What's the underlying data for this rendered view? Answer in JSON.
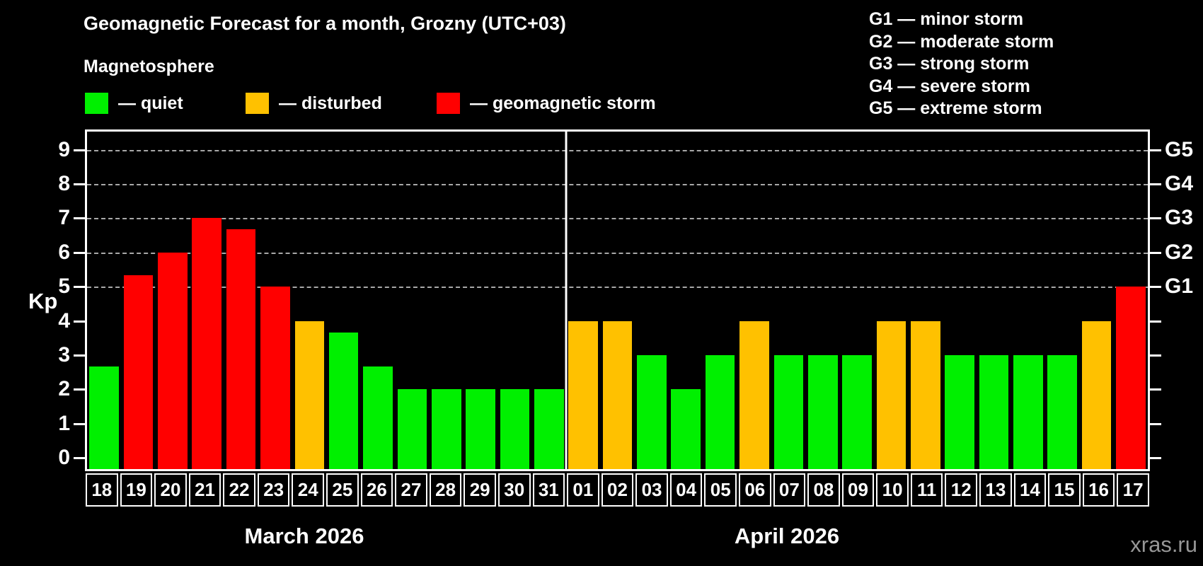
{
  "title": "Geomagnetic Forecast for a month, Grozny (UTC+03)",
  "subtitle": "Magnetosphere",
  "legend": {
    "items": [
      {
        "key": "quiet",
        "label": "— quiet"
      },
      {
        "key": "disturbed",
        "label": "— disturbed"
      },
      {
        "key": "storm",
        "label": "— geomagnetic storm"
      }
    ]
  },
  "g_legend": {
    "items": [
      "G1 — minor storm",
      "G2 — moderate storm",
      "G3 — strong storm",
      "G4 — severe storm",
      "G5 — extreme storm"
    ]
  },
  "y_axis": {
    "label": "Kp",
    "ticks": [
      0,
      1,
      2,
      3,
      4,
      5,
      6,
      7,
      8,
      9
    ]
  },
  "watermark": "xras.ru",
  "chart_data": {
    "type": "bar",
    "title": "Geomagnetic Forecast for a month, Grozny (UTC+03)",
    "ylabel": "Kp",
    "ylim": [
      0,
      9
    ],
    "grid": "dashed horizontal at Kp 5-9",
    "gridlines_kp": [
      5,
      6,
      7,
      8,
      9
    ],
    "g_levels": [
      {
        "kp": 5,
        "label": "G1"
      },
      {
        "kp": 6,
        "label": "G2"
      },
      {
        "kp": 7,
        "label": "G3"
      },
      {
        "kp": 8,
        "label": "G4"
      },
      {
        "kp": 9,
        "label": "G5"
      }
    ],
    "colors": {
      "quiet": "#00f000",
      "disturbed": "#ffc100",
      "storm": "#ff0000",
      "grid": "#a8a8a8",
      "axis": "#ffffff"
    },
    "months": [
      {
        "label": "March 2026",
        "days": [
          {
            "day": "18",
            "kp": 2.67,
            "status": "quiet"
          },
          {
            "day": "19",
            "kp": 5.33,
            "status": "storm"
          },
          {
            "day": "20",
            "kp": 6.0,
            "status": "storm"
          },
          {
            "day": "21",
            "kp": 7.0,
            "status": "storm"
          },
          {
            "day": "22",
            "kp": 6.67,
            "status": "storm"
          },
          {
            "day": "23",
            "kp": 5.0,
            "status": "storm"
          },
          {
            "day": "24",
            "kp": 4.0,
            "status": "disturbed"
          },
          {
            "day": "25",
            "kp": 3.67,
            "status": "quiet"
          },
          {
            "day": "26",
            "kp": 2.67,
            "status": "quiet"
          },
          {
            "day": "27",
            "kp": 2.0,
            "status": "quiet"
          },
          {
            "day": "28",
            "kp": 2.0,
            "status": "quiet"
          },
          {
            "day": "29",
            "kp": 2.0,
            "status": "quiet"
          },
          {
            "day": "30",
            "kp": 2.0,
            "status": "quiet"
          },
          {
            "day": "31",
            "kp": 2.0,
            "status": "quiet"
          }
        ]
      },
      {
        "label": "April 2026",
        "days": [
          {
            "day": "01",
            "kp": 4.0,
            "status": "disturbed"
          },
          {
            "day": "02",
            "kp": 4.0,
            "status": "disturbed"
          },
          {
            "day": "03",
            "kp": 3.0,
            "status": "quiet"
          },
          {
            "day": "04",
            "kp": 2.0,
            "status": "quiet"
          },
          {
            "day": "05",
            "kp": 3.0,
            "status": "quiet"
          },
          {
            "day": "06",
            "kp": 4.0,
            "status": "disturbed"
          },
          {
            "day": "07",
            "kp": 3.0,
            "status": "quiet"
          },
          {
            "day": "08",
            "kp": 3.0,
            "status": "quiet"
          },
          {
            "day": "09",
            "kp": 3.0,
            "status": "quiet"
          },
          {
            "day": "10",
            "kp": 4.0,
            "status": "disturbed"
          },
          {
            "day": "11",
            "kp": 4.0,
            "status": "disturbed"
          },
          {
            "day": "12",
            "kp": 3.0,
            "status": "quiet"
          },
          {
            "day": "13",
            "kp": 3.0,
            "status": "quiet"
          },
          {
            "day": "14",
            "kp": 3.0,
            "status": "quiet"
          },
          {
            "day": "15",
            "kp": 3.0,
            "status": "quiet"
          },
          {
            "day": "16",
            "kp": 4.0,
            "status": "disturbed"
          },
          {
            "day": "17",
            "kp": 5.0,
            "status": "storm"
          }
        ]
      }
    ]
  }
}
